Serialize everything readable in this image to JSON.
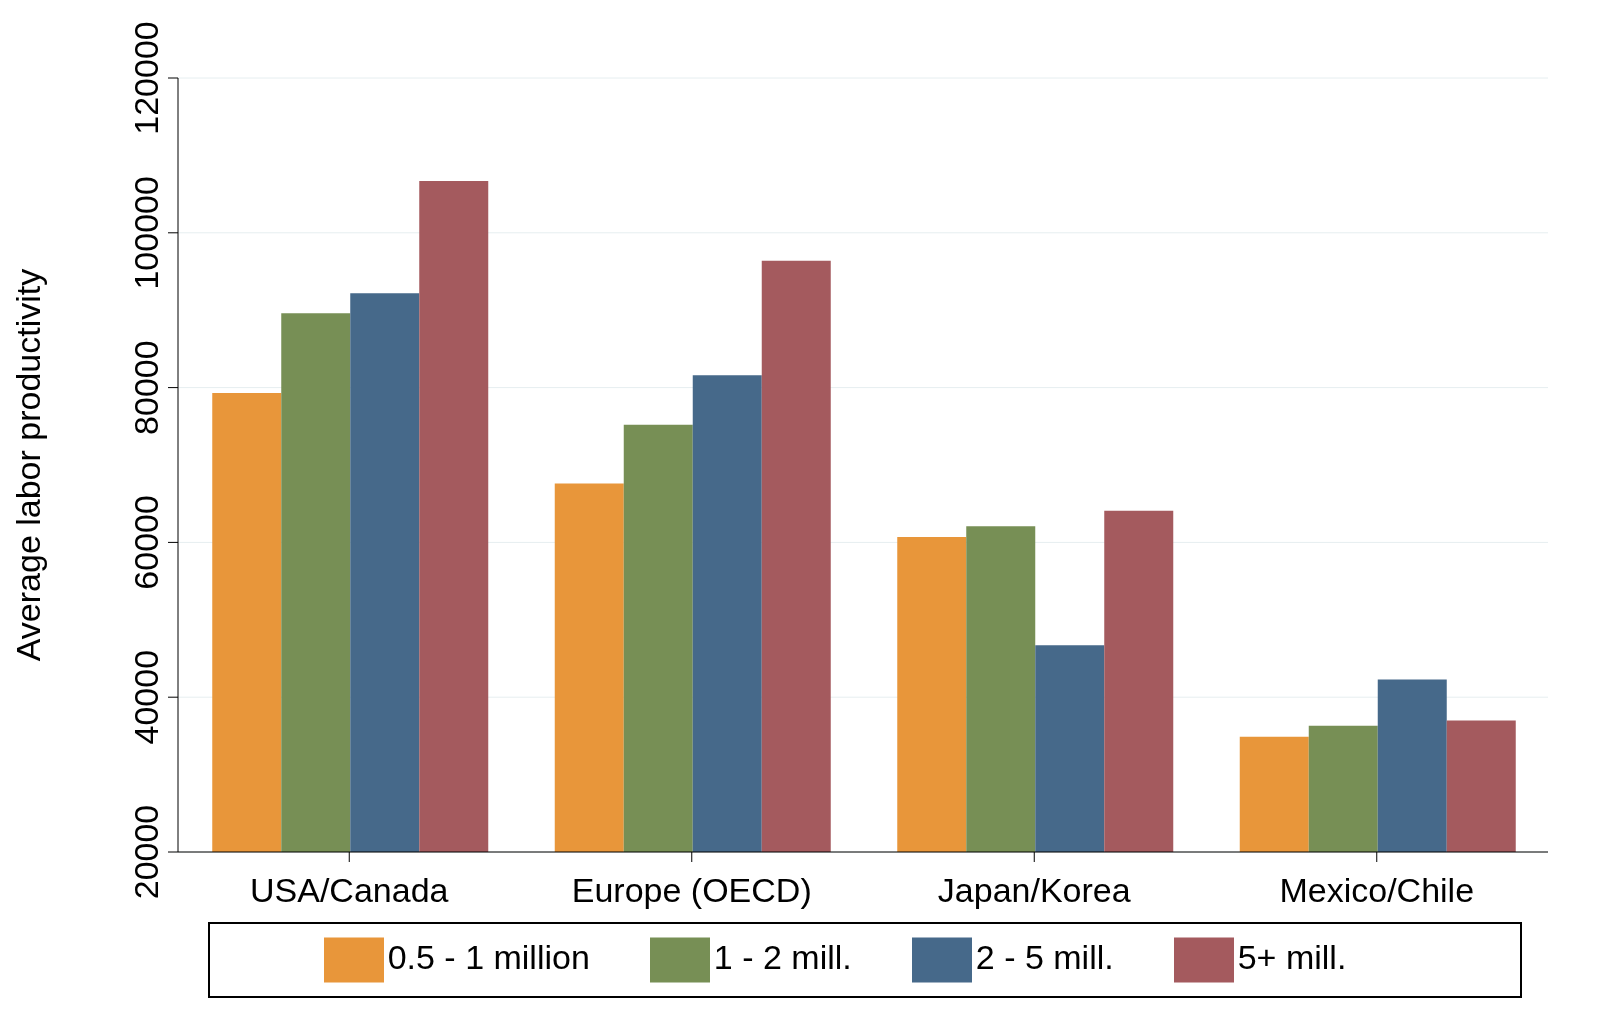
{
  "chart_data": {
    "type": "bar",
    "ylabel": "Average labor productivity",
    "categories": [
      "USA/Canada",
      "Europe (OECD)",
      "Japan/Korea",
      "Mexico/Chile"
    ],
    "series": [
      {
        "name": "0.5 - 1 million",
        "color": "#e8963a",
        "values": [
          79300,
          67600,
          60700,
          34900
        ]
      },
      {
        "name": "1 - 2 mill.",
        "color": "#778f55",
        "values": [
          89600,
          75200,
          62100,
          36300
        ]
      },
      {
        "name": "2 - 5 mill.",
        "color": "#46698a",
        "values": [
          92200,
          81600,
          46700,
          42300
        ]
      },
      {
        "name": "5+ mill.",
        "color": "#a45a5e",
        "values": [
          106700,
          96400,
          64100,
          37000
        ]
      }
    ],
    "ylim": [
      20000,
      120000
    ],
    "yticks": [
      20000,
      40000,
      60000,
      80000,
      100000,
      120000
    ],
    "grid": "y",
    "legend": "bottom"
  }
}
